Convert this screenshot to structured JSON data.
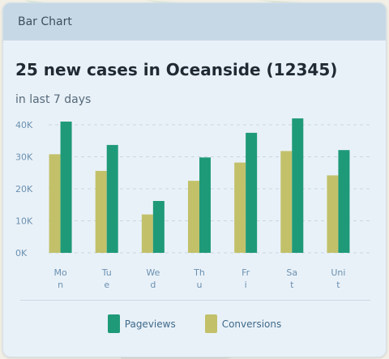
{
  "window": {
    "title": "Bar Chart"
  },
  "headline": "25 new cases in Oceanside (12345)",
  "subhead": "in last 7 days",
  "colors": {
    "pageviews": "#1f9a78",
    "conversions": "#c2c16a",
    "grid": "#c6d6e2",
    "axis_text": "#6a90b0"
  },
  "chart_data": {
    "type": "bar",
    "categories": [
      "Mon",
      "Tue",
      "Wed",
      "Thu",
      "Fri",
      "Sat",
      "Uni"
    ],
    "category_lines": [
      [
        "Mo",
        "n"
      ],
      [
        "Tu",
        "e"
      ],
      [
        "We",
        "d"
      ],
      [
        "Th",
        "u"
      ],
      [
        "Fr",
        "i"
      ],
      [
        "Sa",
        "t"
      ],
      [
        "Uni",
        "t"
      ]
    ],
    "series": [
      {
        "name": "Conversions",
        "values": [
          30800,
          25600,
          12000,
          22500,
          28200,
          31800,
          24200
        ]
      },
      {
        "name": "Pageviews",
        "values": [
          41000,
          33700,
          16200,
          29800,
          37500,
          42000,
          32100
        ]
      }
    ],
    "ylim": [
      0,
      40000
    ],
    "yticks": [
      0,
      10000,
      20000,
      30000,
      40000
    ],
    "ytick_labels": [
      "0K",
      "10K",
      "20K",
      "30K",
      "40K"
    ],
    "grid": true,
    "legend_position": "bottom"
  },
  "legend": {
    "items": [
      {
        "label": "Pageviews",
        "key": "pageviews"
      },
      {
        "label": "Conversions",
        "key": "conversions"
      }
    ]
  }
}
